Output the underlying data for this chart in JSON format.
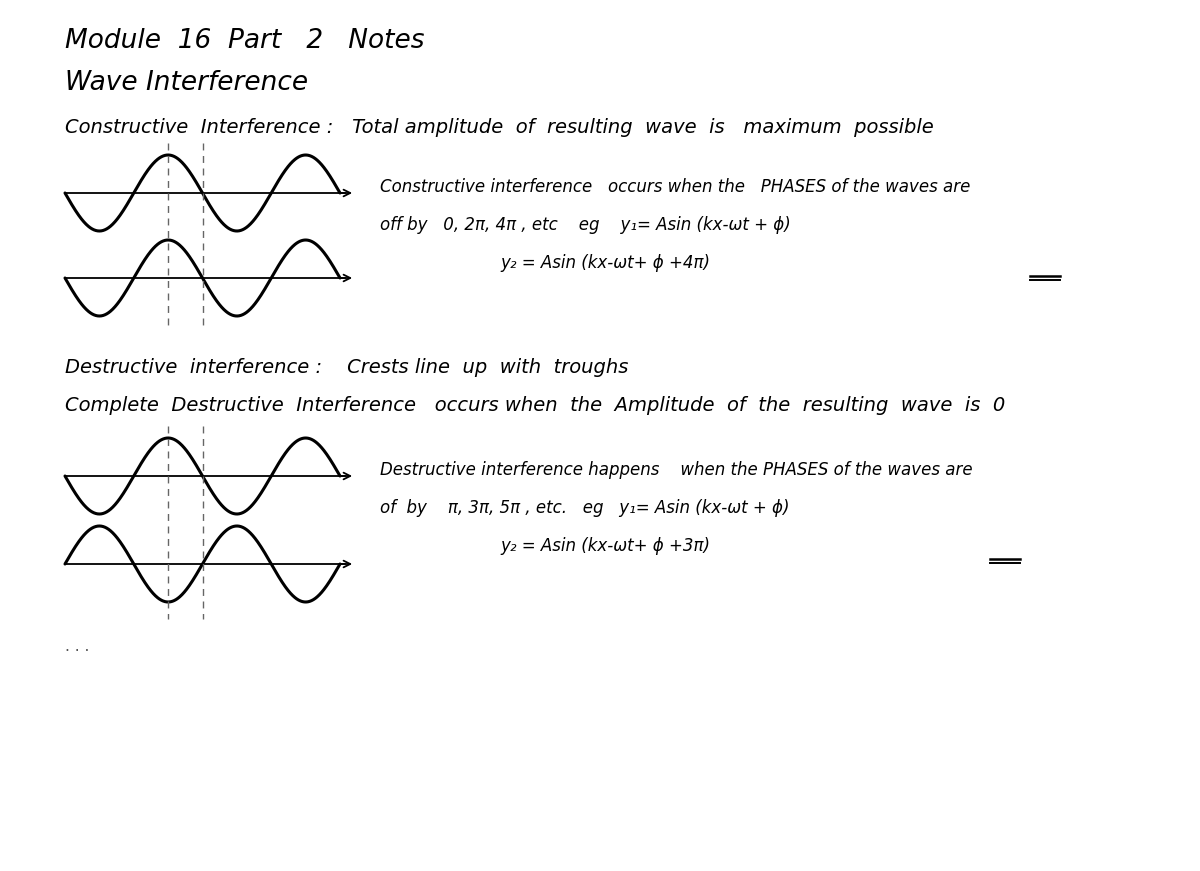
{
  "background_color": "#ffffff",
  "title_line1": "Module  16  Part   2   Notes",
  "title_line2": "Wave Interference",
  "constructive_header": "Constructive  Interference :   Total amplitude  of  resulting  wave  is   maximum  possible",
  "constructive_note1": "Constructive interference   occurs when the   PHASES of the waves are",
  "constructive_note2": "off by   0, 2π, 4π , etc    eg    y₁= Asin (kx-ωt + ϕ)",
  "constructive_note3": "y₂ = Asin (kx-ωt+ ϕ +4π)",
  "destructive_header1": "Destructive  interference :    Crests line  up  with  troughs",
  "destructive_header2": "Complete  Destructive  Interference   occurs when  the  Amplitude  of  the  resulting  wave  is  0",
  "destructive_note1": "Destructive interference happens    when the PHASES of the waves are",
  "destructive_note2": "of  by    π, 3π, 5π , etc.   eg   y₁= Asin (kx-ωt + ϕ)",
  "destructive_note3": "y₂ = Asin (kx-ωt+ ϕ +3π)",
  "wave_color": "#000000",
  "dashed_color": "#666666",
  "font_size_title": 19,
  "font_size_header": 14,
  "font_size_body": 13
}
